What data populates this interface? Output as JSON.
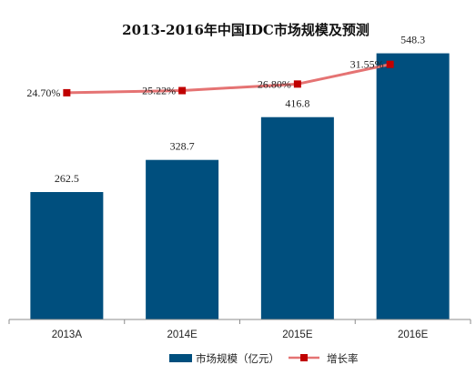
{
  "chart_data": {
    "type": "bar",
    "title": "2013-2016年中国IDC市场规模及预测",
    "categories": [
      "2013A",
      "2014E",
      "2015E",
      "2016E"
    ],
    "series": [
      {
        "name": "市场规模（亿元）",
        "kind": "bar",
        "values": [
          262.5,
          328.7,
          416.8,
          548.3
        ],
        "value_labels": [
          "262.5",
          "328.7",
          "416.8",
          "548.3"
        ],
        "color": "#004F7E"
      },
      {
        "name": "增长率",
        "kind": "line",
        "values": [
          24.7,
          25.22,
          26.8,
          31.55
        ],
        "value_labels": [
          "24.70%",
          "25.22%",
          "26.80%",
          "31.55%"
        ],
        "line_color": "#E57373",
        "marker_color": "#C00000"
      }
    ],
    "bar_axis_range": [
      0,
      600
    ],
    "rate_axis_range": [
      -30,
      35
    ],
    "grid": false,
    "legend_position": "bottom"
  }
}
